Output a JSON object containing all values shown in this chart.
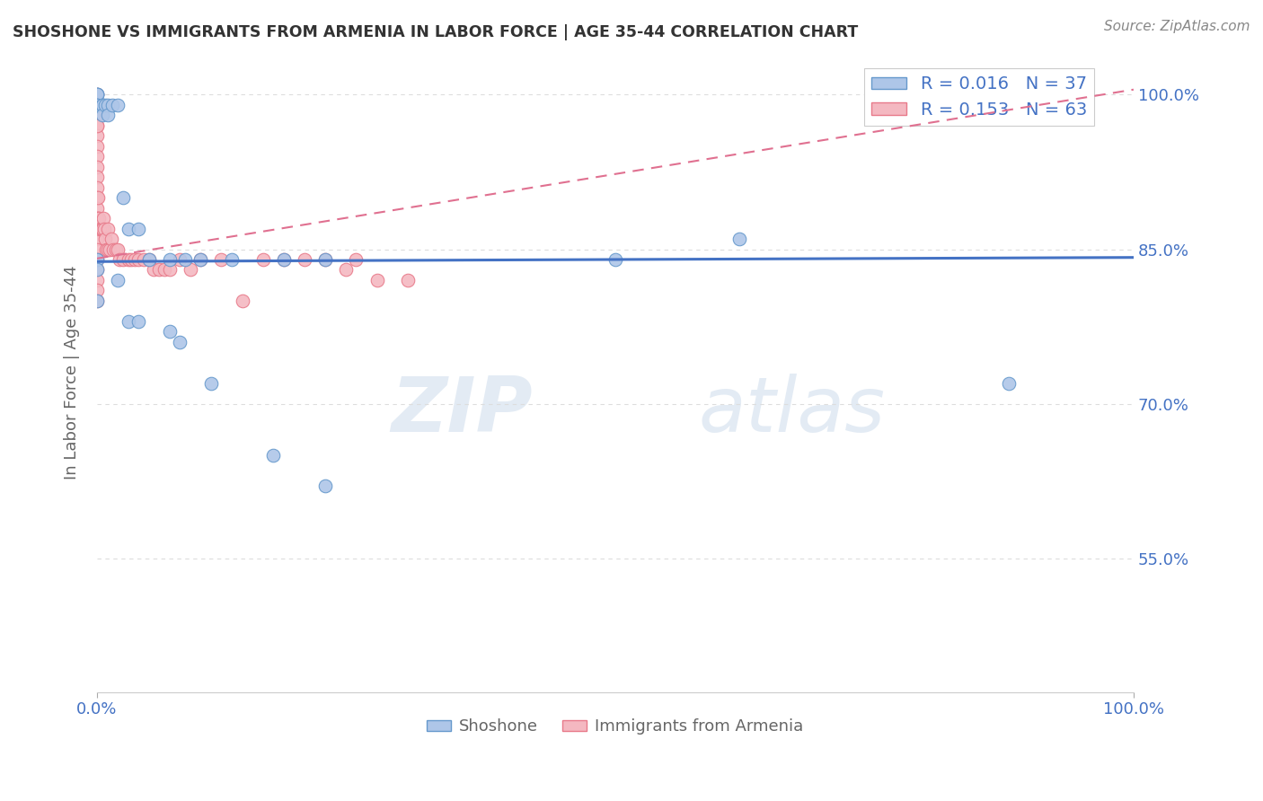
{
  "title": "SHOSHONE VS IMMIGRANTS FROM ARMENIA IN LABOR FORCE | AGE 35-44 CORRELATION CHART",
  "source": "Source: ZipAtlas.com",
  "ylabel": "In Labor Force | Age 35-44",
  "xlim": [
    0.0,
    1.0
  ],
  "ylim": [
    0.42,
    1.04
  ],
  "yticks": [
    0.55,
    0.7,
    0.85,
    1.0
  ],
  "ytick_labels": [
    "55.0%",
    "70.0%",
    "85.0%",
    "100.0%"
  ],
  "xtick_labels": [
    "0.0%",
    "100.0%"
  ],
  "shoshone_color": "#aec6e8",
  "shoshone_edge_color": "#6699cc",
  "armenia_color": "#f4b8c1",
  "armenia_edge_color": "#e87a8a",
  "trend_blue_color": "#4472c4",
  "trend_pink_color": "#e07090",
  "watermark_zip": "ZIP",
  "watermark_atlas": "atlas",
  "background_color": "#ffffff",
  "grid_color": "#dddddd",
  "axis_color": "#4472c4",
  "title_color": "#333333",
  "shoshone_r": 0.016,
  "shoshone_n": 37,
  "armenia_r": 0.153,
  "armenia_n": 63,
  "shoshone_scatter_x": [
    0.0,
    0.0,
    0.0,
    0.0,
    0.0,
    0.005,
    0.005,
    0.005,
    0.008,
    0.01,
    0.01,
    0.015,
    0.02,
    0.025,
    0.03,
    0.04,
    0.05,
    0.07,
    0.085,
    0.1,
    0.13,
    0.18,
    0.22,
    0.5,
    0.62,
    0.88,
    0.0,
    0.0,
    0.0,
    0.02,
    0.03,
    0.04,
    0.07,
    0.08,
    0.11,
    0.17,
    0.22
  ],
  "shoshone_scatter_y": [
    1.0,
    1.0,
    1.0,
    0.99,
    0.99,
    0.99,
    0.99,
    0.98,
    0.99,
    0.99,
    0.98,
    0.99,
    0.99,
    0.9,
    0.87,
    0.87,
    0.84,
    0.84,
    0.84,
    0.84,
    0.84,
    0.84,
    0.84,
    0.84,
    0.86,
    0.72,
    0.84,
    0.83,
    0.8,
    0.82,
    0.78,
    0.78,
    0.77,
    0.76,
    0.72,
    0.65,
    0.62
  ],
  "armenia_scatter_x": [
    0.0,
    0.0,
    0.0,
    0.0,
    0.0,
    0.0,
    0.0,
    0.0,
    0.0,
    0.0,
    0.0,
    0.0,
    0.0,
    0.0,
    0.0,
    0.0,
    0.0,
    0.0,
    0.0,
    0.0,
    0.0,
    0.001,
    0.001,
    0.002,
    0.003,
    0.004,
    0.005,
    0.006,
    0.007,
    0.008,
    0.009,
    0.01,
    0.01,
    0.012,
    0.014,
    0.016,
    0.018,
    0.02,
    0.022,
    0.025,
    0.03,
    0.033,
    0.036,
    0.04,
    0.045,
    0.05,
    0.055,
    0.06,
    0.065,
    0.07,
    0.08,
    0.09,
    0.1,
    0.12,
    0.14,
    0.16,
    0.18,
    0.2,
    0.22,
    0.24,
    0.25,
    0.27,
    0.3
  ],
  "armenia_scatter_y": [
    1.0,
    0.98,
    0.97,
    0.96,
    0.95,
    0.94,
    0.93,
    0.92,
    0.91,
    0.9,
    0.89,
    0.88,
    0.87,
    0.86,
    0.85,
    0.84,
    0.83,
    0.82,
    0.81,
    0.8,
    0.97,
    0.9,
    0.88,
    0.88,
    0.87,
    0.87,
    0.87,
    0.88,
    0.87,
    0.86,
    0.85,
    0.87,
    0.85,
    0.85,
    0.86,
    0.85,
    0.85,
    0.85,
    0.84,
    0.84,
    0.84,
    0.84,
    0.84,
    0.84,
    0.84,
    0.84,
    0.83,
    0.83,
    0.83,
    0.83,
    0.84,
    0.83,
    0.84,
    0.84,
    0.8,
    0.84,
    0.84,
    0.84,
    0.84,
    0.83,
    0.84,
    0.82,
    0.82
  ],
  "blue_trend_x": [
    0.0,
    1.0
  ],
  "blue_trend_y": [
    0.838,
    0.842
  ],
  "pink_trend_x": [
    0.0,
    1.0
  ],
  "pink_trend_y": [
    0.841,
    1.005
  ]
}
